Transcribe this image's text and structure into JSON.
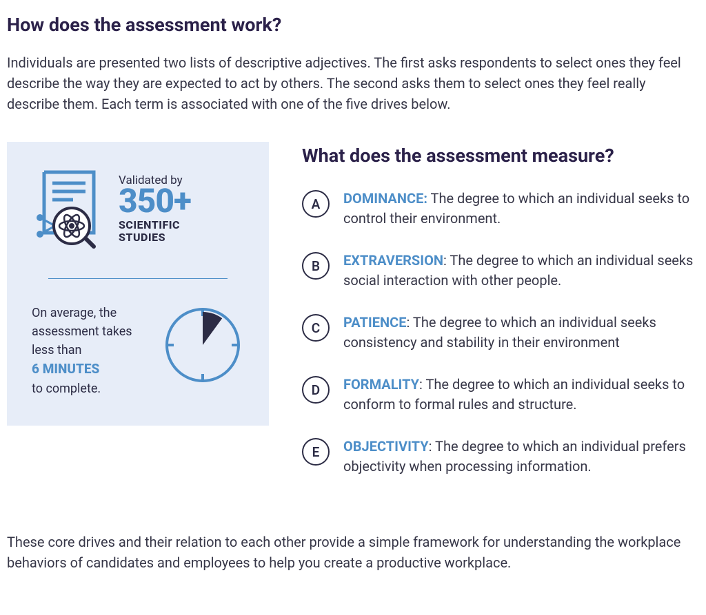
{
  "colors": {
    "heading": "#2b2149",
    "body_text": "#373748",
    "sidebar_bg": "#e7edf8",
    "accent_blue": "#4d8ec8",
    "dark_navy": "#2c2c45",
    "divider": "#4d8ec8",
    "clock_stroke": "#4d8ec8",
    "clock_slice": "#2c2c45",
    "badge_border": "#2c2c45"
  },
  "header": {
    "title": "How does the assessment work?",
    "intro": "Individuals are presented two lists of descriptive adjectives. The first asks respondents to select ones they feel describe the way they are expected to act by others. The second asks them to select ones they feel really describe them. Each term is associated with one of the five drives below."
  },
  "sidebar": {
    "validated": {
      "prefix": "Validated by",
      "number": "350+",
      "label_line1": "SCIENTIFIC",
      "label_line2": "STUDIES"
    },
    "time": {
      "line1": "On average, the assessment takes less than",
      "highlight": "6 MINUTES",
      "line3": "to complete.",
      "clock_fraction": 0.1
    }
  },
  "measures": {
    "title": "What does the assessment measure?",
    "items": [
      {
        "letter": "A",
        "label": "DOMINANCE:",
        "desc": " The degree to which an individual seeks to control their environment."
      },
      {
        "letter": "B",
        "label": "EXTRAVERSION",
        "desc": ": The degree to which an individual seeks social interaction with other people."
      },
      {
        "letter": "C",
        "label": "PATIENCE",
        "desc": ": The degree to which an individual seeks consistency and stability in their environment"
      },
      {
        "letter": "D",
        "label": "FORMALITY",
        "desc": ": The degree to which an individual seeks to conform to formal rules and structure."
      },
      {
        "letter": "E",
        "label": "OBJECTIVITY",
        "desc": ": The degree to which an individual prefers objectivity when processing information."
      }
    ]
  },
  "footer": "These core drives and their relation to each other provide a simple framework for understanding the workplace behaviors of candidates and employees to help you create a productive workplace."
}
